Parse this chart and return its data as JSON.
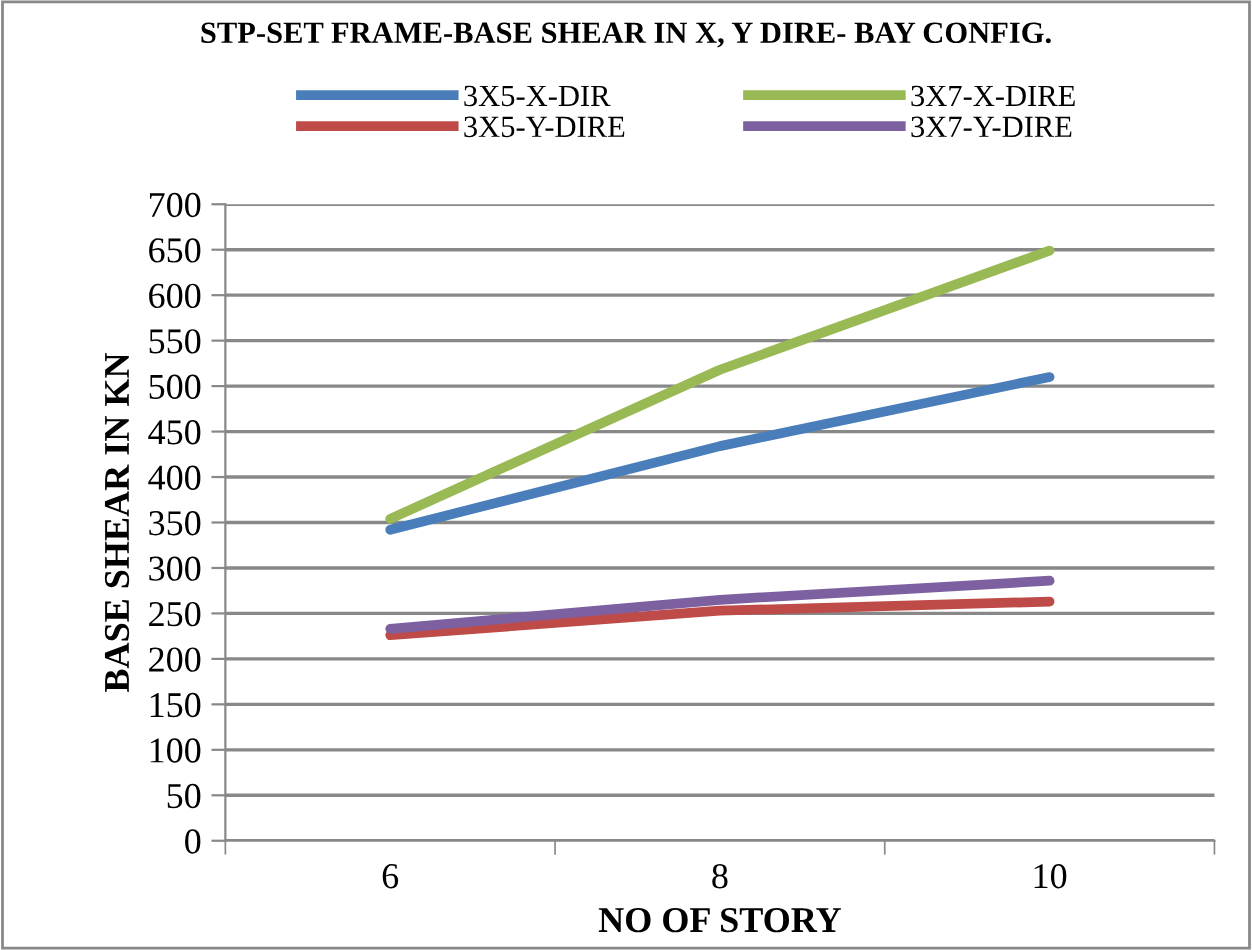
{
  "chart_data": {
    "type": "line",
    "title": "STP-SET FRAME-BASE SHEAR IN X, Y DIRE- BAY CONFIG.",
    "xlabel": "NO OF STORY",
    "ylabel": "BASE SHEAR IN KN",
    "categories": [
      "6",
      "8",
      "10"
    ],
    "series": [
      {
        "name": "3X5-X-DIR",
        "color": "#4a7ebb",
        "values": [
          342,
          434,
          510
        ]
      },
      {
        "name": "3X5-Y-DIRE",
        "color": "#be4b48",
        "values": [
          226,
          253,
          263
        ]
      },
      {
        "name": "3X7-X-DIRE",
        "color": "#98b954",
        "values": [
          354,
          518,
          649
        ]
      },
      {
        "name": "3X7-Y-DIRE",
        "color": "#7d60a0",
        "values": [
          233,
          265,
          286
        ]
      }
    ],
    "ylim": [
      0,
      700
    ],
    "yticks": [
      0,
      50,
      100,
      150,
      200,
      250,
      300,
      350,
      400,
      450,
      500,
      550,
      600,
      650,
      700
    ],
    "grid": "y",
    "legend": "top",
    "marker": "none",
    "line_style": "solid"
  }
}
